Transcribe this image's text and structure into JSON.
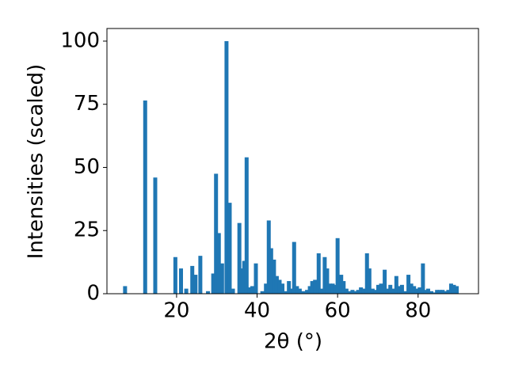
{
  "chart_data": {
    "type": "bar",
    "xlabel": "2θ (°)",
    "ylabel": "Intensities (scaled)",
    "color": "#1f77b4",
    "x": [
      7.2,
      12.2,
      14.7,
      19.7,
      21.1,
      22.4,
      23.9,
      24.7,
      25.9,
      27.8,
      29.1,
      29.8,
      30.5,
      31.3,
      32.4,
      33.2,
      34.0,
      35.6,
      36.2,
      36.8,
      37.4,
      38.1,
      38.8,
      39.7,
      41.3,
      42.2,
      42.9,
      43.5,
      44.2,
      44.9,
      45.6,
      46.3,
      47.2,
      47.9,
      48.5,
      49.2,
      49.9,
      50.6,
      51.5,
      52.4,
      53.1,
      53.7,
      54.4,
      55.3,
      55.9,
      56.8,
      57.4,
      58.1,
      58.8,
      59.4,
      60.0,
      60.9,
      61.5,
      62.2,
      63.0,
      63.7,
      64.4,
      65.1,
      65.8,
      66.5,
      67.3,
      67.9,
      68.7,
      69.4,
      70.1,
      70.8,
      71.7,
      72.4,
      73.1,
      73.8,
      74.6,
      75.3,
      76.0,
      76.8,
      77.6,
      78.3,
      79.0,
      79.7,
      80.4,
      81.2,
      81.8,
      82.5,
      83.3,
      84.0,
      84.7,
      85.4,
      86.1,
      86.8,
      87.5,
      88.2,
      88.9,
      89.6
    ],
    "values": [
      3,
      76.5,
      46,
      14.5,
      10,
      2,
      11,
      7.5,
      15,
      1,
      8,
      47.5,
      24,
      12,
      100,
      36,
      2,
      28,
      10,
      13,
      54,
      2.5,
      3,
      12,
      1,
      4,
      29,
      18,
      13.5,
      7,
      5.5,
      4,
      1,
      5,
      2,
      20.5,
      3,
      2,
      1,
      1.5,
      3,
      5,
      5.5,
      16,
      2,
      14.5,
      10,
      4,
      4,
      3.5,
      22,
      7.5,
      5,
      2,
      1,
      1.5,
      1,
      1.5,
      2.5,
      2,
      16,
      10,
      2,
      1.5,
      3.5,
      4,
      9.5,
      2,
      3.5,
      2,
      7,
      3,
      3.5,
      1,
      7.5,
      4,
      3,
      2,
      2.5,
      12,
      1.5,
      2,
      1,
      0.5,
      1.5,
      1.5,
      1.5,
      1,
      1.5,
      4,
      3.5,
      3
    ],
    "xlim": [
      2.7,
      95.0
    ],
    "ylim": [
      0,
      105
    ],
    "xticks": [
      20,
      40,
      60,
      80
    ],
    "yticks": [
      0,
      25,
      50,
      75,
      100
    ]
  }
}
